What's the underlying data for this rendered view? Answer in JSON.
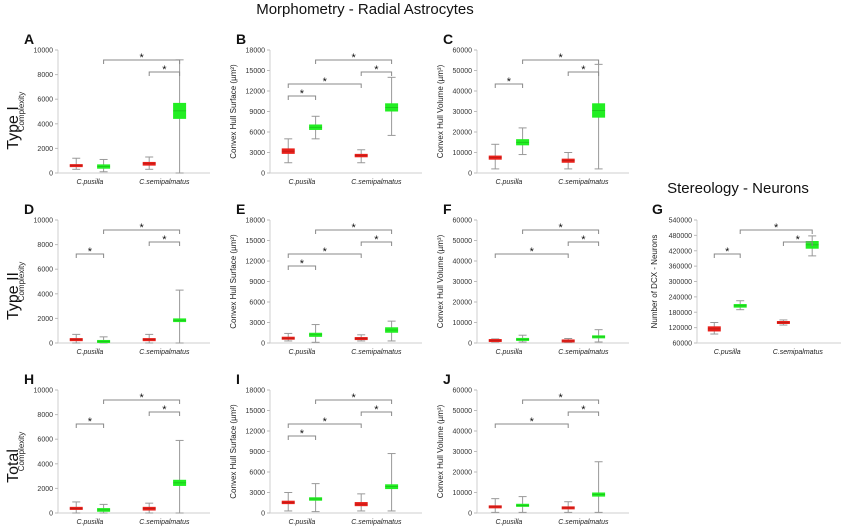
{
  "figure_title": "Morphometry - Radial Astrocytes",
  "stereology_title": "Stereology - Neurons",
  "row_labels": [
    "Type I",
    "Type II",
    "Total"
  ],
  "colors": {
    "red": "#e8201a",
    "green": "#22ee22",
    "whisker": "#999999",
    "bracket": "#888888",
    "axis": "#cfcfcf"
  },
  "chart_data": [
    {
      "panel": "A",
      "type": "box",
      "ylabel": "Complexity",
      "ylim": [
        0,
        10000
      ],
      "yticks": [
        "0",
        "2000",
        "4000",
        "6000",
        "8000",
        "10000"
      ],
      "categories": [
        "C.pusilla",
        "C.semipalmatus"
      ],
      "boxes": [
        {
          "group": "C.pusilla",
          "color": "red",
          "lo": 300,
          "q1": 500,
          "q3": 700,
          "hi": 1200
        },
        {
          "group": "C.pusilla",
          "color": "green",
          "lo": 100,
          "q1": 350,
          "q3": 700,
          "hi": 1100
        },
        {
          "group": "C.semipalmatus",
          "color": "red",
          "lo": 300,
          "q1": 600,
          "q3": 900,
          "hi": 1300
        },
        {
          "group": "C.semipalmatus",
          "color": "green",
          "lo": 0,
          "q1": 4400,
          "q3": 5700,
          "hi": 9200
        }
      ],
      "brackets": [
        {
          "from": 1,
          "to": 3,
          "level": 1,
          "label": "*"
        },
        {
          "from": 2,
          "to": 3,
          "level": 0,
          "label": "*"
        }
      ]
    },
    {
      "panel": "B",
      "type": "box",
      "ylabel": "Convex Hull Surface (µm²)",
      "ylim": [
        0,
        18000
      ],
      "yticks": [
        "0",
        "3000",
        "6000",
        "9000",
        "12000",
        "15000",
        "18000"
      ],
      "categories": [
        "C.pusilla",
        "C.semipalmatus"
      ],
      "boxes": [
        {
          "group": "C.pusilla",
          "color": "red",
          "lo": 1500,
          "q1": 2800,
          "q3": 3600,
          "hi": 5000
        },
        {
          "group": "C.pusilla",
          "color": "green",
          "lo": 5000,
          "q1": 6300,
          "q3": 7100,
          "hi": 8300
        },
        {
          "group": "C.semipalmatus",
          "color": "red",
          "lo": 1500,
          "q1": 2300,
          "q3": 2800,
          "hi": 3400
        },
        {
          "group": "C.semipalmatus",
          "color": "green",
          "lo": 5500,
          "q1": 9000,
          "q3": 10200,
          "hi": 14000
        }
      ],
      "brackets": [
        {
          "from": 0,
          "to": 1,
          "level": 0,
          "label": "*"
        },
        {
          "from": 0,
          "to": 2,
          "level": 1,
          "label": "*"
        },
        {
          "from": 2,
          "to": 3,
          "level": 2,
          "label": "*"
        },
        {
          "from": 1,
          "to": 3,
          "level": 3,
          "label": "*"
        }
      ]
    },
    {
      "panel": "C",
      "type": "box",
      "ylabel": "Convex Hull Volume (µm³)",
      "ylim": [
        0,
        60000
      ],
      "yticks": [
        "0",
        "10000",
        "20000",
        "30000",
        "40000",
        "50000",
        "60000"
      ],
      "categories": [
        "C.pusilla",
        "C.semipalmatus"
      ],
      "boxes": [
        {
          "group": "C.pusilla",
          "color": "red",
          "lo": 2000,
          "q1": 6500,
          "q3": 8500,
          "hi": 14000
        },
        {
          "group": "C.pusilla",
          "color": "green",
          "lo": 9000,
          "q1": 13500,
          "q3": 16500,
          "hi": 22000
        },
        {
          "group": "C.semipalmatus",
          "color": "red",
          "lo": 2000,
          "q1": 5000,
          "q3": 7000,
          "hi": 10000
        },
        {
          "group": "C.semipalmatus",
          "color": "green",
          "lo": 2000,
          "q1": 27000,
          "q3": 34000,
          "hi": 53000
        }
      ],
      "brackets": [
        {
          "from": 0,
          "to": 1,
          "level": 0,
          "label": "*"
        },
        {
          "from": 2,
          "to": 3,
          "level": 1,
          "label": "*"
        },
        {
          "from": 1,
          "to": 3,
          "level": 2,
          "label": "*"
        }
      ]
    },
    {
      "panel": "D",
      "type": "box",
      "ylabel": "Complexity",
      "ylim": [
        0,
        10000
      ],
      "yticks": [
        "0",
        "2000",
        "4000",
        "6000",
        "8000",
        "10000"
      ],
      "categories": [
        "C.pusilla",
        "C.semipalmatus"
      ],
      "boxes": [
        {
          "group": "C.pusilla",
          "color": "red",
          "lo": 0,
          "q1": 150,
          "q3": 400,
          "hi": 700
        },
        {
          "group": "C.pusilla",
          "color": "green",
          "lo": 0,
          "q1": 50,
          "q3": 200,
          "hi": 500
        },
        {
          "group": "C.semipalmatus",
          "color": "red",
          "lo": 0,
          "q1": 150,
          "q3": 400,
          "hi": 700
        },
        {
          "group": "C.semipalmatus",
          "color": "green",
          "lo": 0,
          "q1": 1700,
          "q3": 2000,
          "hi": 4300
        }
      ],
      "brackets": [
        {
          "from": 0,
          "to": 1,
          "level": 0,
          "label": "*"
        },
        {
          "from": 2,
          "to": 3,
          "level": 1,
          "label": "*"
        },
        {
          "from": 1,
          "to": 3,
          "level": 2,
          "label": "*"
        }
      ]
    },
    {
      "panel": "E",
      "type": "box",
      "ylabel": "Convex Hull Surface (µm²)",
      "ylim": [
        0,
        18000
      ],
      "yticks": [
        "0",
        "3000",
        "6000",
        "9000",
        "12000",
        "15000",
        "18000"
      ],
      "categories": [
        "C.pusilla",
        "C.semipalmatus"
      ],
      "boxes": [
        {
          "group": "C.pusilla",
          "color": "red",
          "lo": 300,
          "q1": 500,
          "q3": 900,
          "hi": 1400
        },
        {
          "group": "C.pusilla",
          "color": "green",
          "lo": 100,
          "q1": 900,
          "q3": 1500,
          "hi": 2700
        },
        {
          "group": "C.semipalmatus",
          "color": "red",
          "lo": 300,
          "q1": 500,
          "q3": 800,
          "hi": 1200
        },
        {
          "group": "C.semipalmatus",
          "color": "green",
          "lo": 300,
          "q1": 1500,
          "q3": 2300,
          "hi": 3200
        }
      ],
      "brackets": [
        {
          "from": 0,
          "to": 1,
          "level": 0,
          "label": "*"
        },
        {
          "from": 0,
          "to": 2,
          "level": 1,
          "label": "*"
        },
        {
          "from": 2,
          "to": 3,
          "level": 2,
          "label": "*"
        },
        {
          "from": 1,
          "to": 3,
          "level": 3,
          "label": "*"
        }
      ]
    },
    {
      "panel": "F",
      "type": "box",
      "ylabel": "Convex Hull Volume (µm³)",
      "ylim": [
        0,
        60000
      ],
      "yticks": [
        "0",
        "10000",
        "20000",
        "30000",
        "40000",
        "50000",
        "60000"
      ],
      "categories": [
        "C.pusilla",
        "C.semipalmatus"
      ],
      "boxes": [
        {
          "group": "C.pusilla",
          "color": "red",
          "lo": 500,
          "q1": 900,
          "q3": 1500,
          "hi": 2000
        },
        {
          "group": "C.pusilla",
          "color": "green",
          "lo": 500,
          "q1": 1200,
          "q3": 2300,
          "hi": 3800
        },
        {
          "group": "C.semipalmatus",
          "color": "red",
          "lo": 300,
          "q1": 800,
          "q3": 1200,
          "hi": 2200
        },
        {
          "group": "C.semipalmatus",
          "color": "green",
          "lo": 500,
          "q1": 2500,
          "q3": 3500,
          "hi": 6500
        }
      ],
      "brackets": [
        {
          "from": 0,
          "to": 2,
          "level": 0,
          "label": "*"
        },
        {
          "from": 2,
          "to": 3,
          "level": 1,
          "label": "*"
        },
        {
          "from": 1,
          "to": 3,
          "level": 2,
          "label": "*"
        }
      ]
    },
    {
      "panel": "G",
      "type": "box",
      "ylabel": "Number of DCX - Neurons",
      "ylim": [
        60000,
        540000
      ],
      "yticks": [
        "60000",
        "120000",
        "180000",
        "240000",
        "300000",
        "360000",
        "420000",
        "480000",
        "540000"
      ],
      "categories": [
        "C.pusilla",
        "C.semipalmatus"
      ],
      "boxes": [
        {
          "group": "C.pusilla",
          "color": "red",
          "lo": 95000,
          "q1": 105000,
          "q3": 125000,
          "hi": 140000
        },
        {
          "group": "C.pusilla",
          "color": "green",
          "lo": 190000,
          "q1": 198000,
          "q3": 212000,
          "hi": 225000
        },
        {
          "group": "C.semipalmatus",
          "color": "red",
          "lo": 130000,
          "q1": 136000,
          "q3": 144000,
          "hi": 150000
        },
        {
          "group": "C.semipalmatus",
          "color": "green",
          "lo": 400000,
          "q1": 428000,
          "q3": 458000,
          "hi": 478000
        }
      ],
      "brackets": [
        {
          "from": 0,
          "to": 1,
          "level": 0,
          "label": "*"
        },
        {
          "from": 2,
          "to": 3,
          "level": 1,
          "label": "*"
        },
        {
          "from": 1,
          "to": 3,
          "level": 2,
          "label": "*"
        }
      ]
    },
    {
      "panel": "H",
      "type": "box",
      "ylabel": "Complexity",
      "ylim": [
        0,
        10000
      ],
      "yticks": [
        "0",
        "2000",
        "4000",
        "6000",
        "8000",
        "10000"
      ],
      "categories": [
        "C.pusilla",
        "C.semipalmatus"
      ],
      "boxes": [
        {
          "group": "C.pusilla",
          "color": "red",
          "lo": 0,
          "q1": 250,
          "q3": 500,
          "hi": 900
        },
        {
          "group": "C.pusilla",
          "color": "green",
          "lo": 0,
          "q1": 100,
          "q3": 400,
          "hi": 700
        },
        {
          "group": "C.semipalmatus",
          "color": "red",
          "lo": 0,
          "q1": 200,
          "q3": 500,
          "hi": 800
        },
        {
          "group": "C.semipalmatus",
          "color": "green",
          "lo": 0,
          "q1": 2200,
          "q3": 2700,
          "hi": 5900
        }
      ],
      "brackets": [
        {
          "from": 0,
          "to": 1,
          "level": 0,
          "label": "*"
        },
        {
          "from": 2,
          "to": 3,
          "level": 1,
          "label": "*"
        },
        {
          "from": 1,
          "to": 3,
          "level": 2,
          "label": "*"
        }
      ]
    },
    {
      "panel": "I",
      "type": "box",
      "ylabel": "Convex Hull Surface (µm²)",
      "ylim": [
        0,
        18000
      ],
      "yticks": [
        "0",
        "3000",
        "6000",
        "9000",
        "12000",
        "15000",
        "18000"
      ],
      "categories": [
        "C.pusilla",
        "C.semipalmatus"
      ],
      "boxes": [
        {
          "group": "C.pusilla",
          "color": "red",
          "lo": 300,
          "q1": 1300,
          "q3": 1800,
          "hi": 3000
        },
        {
          "group": "C.pusilla",
          "color": "green",
          "lo": 200,
          "q1": 1800,
          "q3": 2300,
          "hi": 4300
        },
        {
          "group": "C.semipalmatus",
          "color": "red",
          "lo": 300,
          "q1": 1000,
          "q3": 1600,
          "hi": 2800
        },
        {
          "group": "C.semipalmatus",
          "color": "green",
          "lo": 300,
          "q1": 3500,
          "q3": 4200,
          "hi": 8700
        }
      ],
      "brackets": [
        {
          "from": 0,
          "to": 1,
          "level": 0,
          "label": "*"
        },
        {
          "from": 0,
          "to": 2,
          "level": 1,
          "label": "*"
        },
        {
          "from": 2,
          "to": 3,
          "level": 2,
          "label": "*"
        },
        {
          "from": 1,
          "to": 3,
          "level": 3,
          "label": "*"
        }
      ]
    },
    {
      "panel": "J",
      "type": "box",
      "ylabel": "Convex Hull Volume (µm³)",
      "ylim": [
        0,
        60000
      ],
      "yticks": [
        "0",
        "10000",
        "20000",
        "30000",
        "40000",
        "50000",
        "60000"
      ],
      "categories": [
        "C.pusilla",
        "C.semipalmatus"
      ],
      "boxes": [
        {
          "group": "C.pusilla",
          "color": "red",
          "lo": 300,
          "q1": 2500,
          "q3": 3500,
          "hi": 7000
        },
        {
          "group": "C.pusilla",
          "color": "green",
          "lo": 300,
          "q1": 3000,
          "q3": 4500,
          "hi": 8000
        },
        {
          "group": "C.semipalmatus",
          "color": "red",
          "lo": 300,
          "q1": 2000,
          "q3": 3000,
          "hi": 5500
        },
        {
          "group": "C.semipalmatus",
          "color": "green",
          "lo": 300,
          "q1": 8000,
          "q3": 10000,
          "hi": 25000
        }
      ],
      "brackets": [
        {
          "from": 0,
          "to": 2,
          "level": 0,
          "label": "*"
        },
        {
          "from": 2,
          "to": 3,
          "level": 1,
          "label": "*"
        },
        {
          "from": 1,
          "to": 3,
          "level": 2,
          "label": "*"
        }
      ]
    }
  ]
}
